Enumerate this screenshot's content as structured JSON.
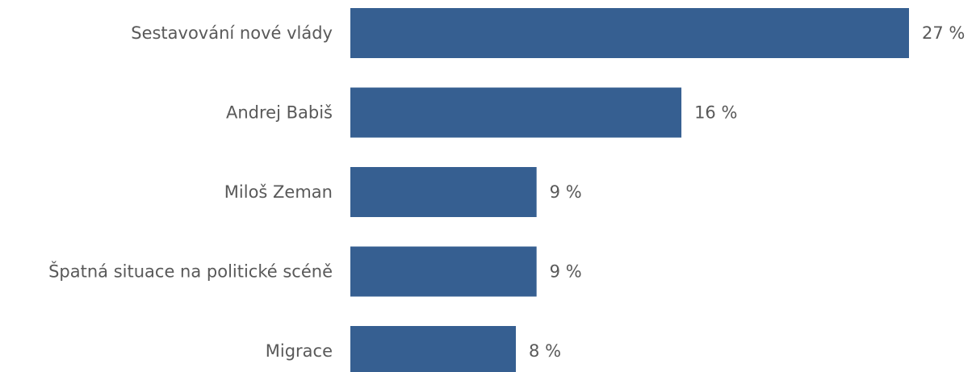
{
  "chart_data": {
    "type": "bar",
    "orientation": "horizontal",
    "categories": [
      "Sestavování nové vlády",
      "Andrej Babiš",
      "Miloš Zeman",
      "Špatná situace na politické scéně",
      "Migrace"
    ],
    "values": [
      27,
      16,
      9,
      9,
      8
    ],
    "value_labels": [
      "27 %",
      "16 %",
      "9 %",
      "9 %",
      "8 %"
    ],
    "bar_color": "#365F91",
    "text_color": "#595959",
    "xlim": [
      0,
      27
    ],
    "grid": false,
    "legend": "none"
  }
}
